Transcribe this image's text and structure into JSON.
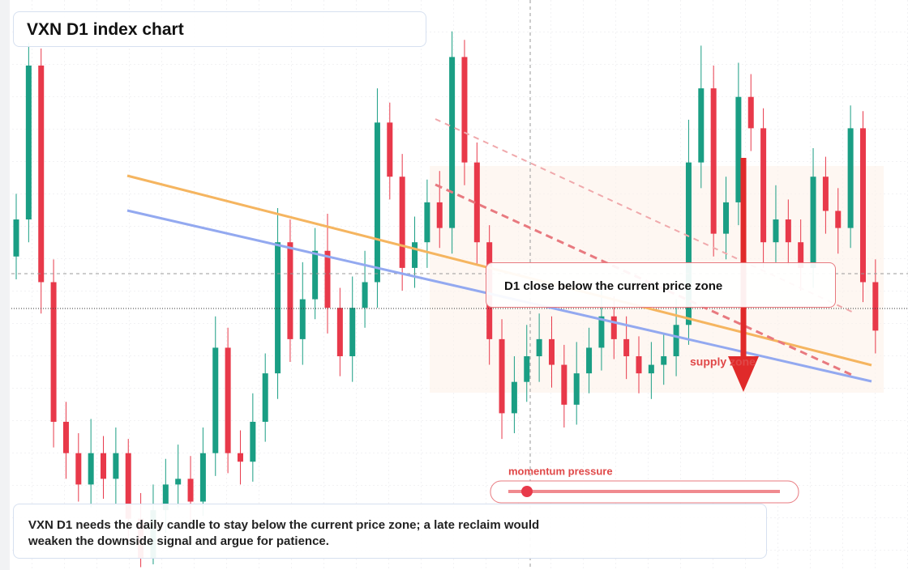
{
  "chart_data": {
    "type": "candlestick",
    "title": "VXN D1 index chart",
    "ylim": [
      10,
      30
    ],
    "up_color": "#1a9e84",
    "down_color": "#e8394a",
    "open": [
      21.0,
      22.3,
      27.7,
      20.1,
      15.2,
      14.1,
      13.0,
      14.1,
      13.2,
      14.1,
      11.8,
      10.4,
      12.1,
      13.0,
      13.2,
      12.4,
      14.1,
      17.8,
      14.1,
      13.8,
      15.2,
      16.9,
      21.5,
      18.1,
      19.5,
      21.2,
      19.2,
      17.5,
      19.2,
      20.1,
      25.7,
      23.8,
      20.6,
      21.5,
      22.9,
      22.0,
      28.0,
      24.3,
      21.5,
      18.1,
      15.5,
      16.6,
      17.5,
      18.1,
      17.2,
      15.8,
      16.9,
      17.8,
      18.9,
      18.1,
      17.5,
      16.9,
      17.2,
      17.5,
      18.6,
      24.3,
      26.9,
      21.8,
      22.9,
      26.6,
      25.5,
      21.5,
      22.3,
      21.5,
      20.6,
      23.8,
      22.6,
      22.0,
      25.5,
      20.1
    ],
    "high": [
      23.2,
      28.5,
      28.3,
      20.9,
      15.9,
      14.8,
      15.3,
      14.7,
      15.0,
      14.6,
      12.7,
      13.0,
      13.9,
      14.4,
      14.0,
      15.0,
      18.9,
      18.5,
      14.9,
      16.2,
      17.6,
      22.7,
      22.3,
      20.8,
      22.0,
      22.5,
      19.9,
      20.3,
      21.2,
      26.9,
      26.4,
      24.6,
      22.4,
      23.7,
      24.0,
      28.9,
      28.6,
      25.0,
      22.1,
      18.8,
      17.5,
      18.6,
      19.0,
      18.9,
      17.9,
      18.0,
      18.5,
      20.0,
      19.6,
      18.9,
      18.2,
      18.0,
      18.3,
      19.5,
      25.8,
      28.4,
      27.7,
      23.8,
      27.8,
      27.4,
      26.2,
      23.5,
      23.0,
      22.3,
      24.8,
      24.5,
      23.4,
      26.3,
      26.1,
      20.9
    ],
    "low": [
      20.2,
      21.5,
      19.0,
      14.3,
      13.2,
      12.4,
      12.2,
      12.5,
      12.3,
      11.0,
      10.1,
      10.2,
      11.3,
      12.2,
      11.7,
      11.9,
      13.3,
      13.4,
      13.0,
      13.1,
      14.5,
      16.0,
      17.3,
      17.2,
      18.8,
      18.3,
      16.8,
      16.6,
      18.5,
      19.2,
      23.0,
      19.8,
      19.9,
      20.6,
      21.3,
      21.1,
      23.5,
      20.7,
      17.2,
      14.6,
      14.8,
      15.9,
      16.6,
      16.4,
      15.0,
      15.1,
      16.2,
      17.0,
      17.4,
      16.7,
      16.2,
      16.0,
      16.5,
      16.8,
      17.9,
      23.4,
      21.0,
      20.9,
      22.1,
      24.7,
      20.6,
      20.8,
      20.7,
      19.8,
      19.9,
      21.8,
      21.1,
      21.3,
      19.4,
      17.6
    ],
    "close": [
      22.3,
      27.7,
      20.1,
      15.2,
      14.1,
      13.0,
      14.1,
      13.2,
      14.1,
      11.8,
      10.4,
      12.1,
      13.0,
      13.2,
      12.4,
      14.1,
      17.8,
      14.1,
      13.8,
      15.2,
      16.9,
      21.5,
      18.1,
      19.5,
      21.2,
      19.2,
      17.5,
      19.2,
      20.1,
      25.7,
      23.8,
      20.6,
      21.5,
      22.9,
      22.0,
      28.0,
      24.3,
      21.5,
      18.1,
      15.5,
      16.6,
      17.5,
      18.1,
      17.2,
      15.8,
      16.9,
      17.8,
      18.9,
      18.1,
      17.5,
      16.9,
      17.2,
      17.5,
      18.6,
      24.3,
      26.9,
      21.8,
      22.9,
      26.6,
      25.5,
      21.5,
      22.3,
      21.5,
      20.6,
      23.8,
      22.6,
      22.0,
      25.5,
      20.1,
      18.4
    ],
    "annotations": {
      "callout": "D1 close below the current price zone",
      "zone": "supply zone",
      "slider": "momentum pressure",
      "note": "VXN D1 needs the daily candle to stay below the current price zone; a late reclaim would weaken the downside signal and argue for patience."
    }
  }
}
